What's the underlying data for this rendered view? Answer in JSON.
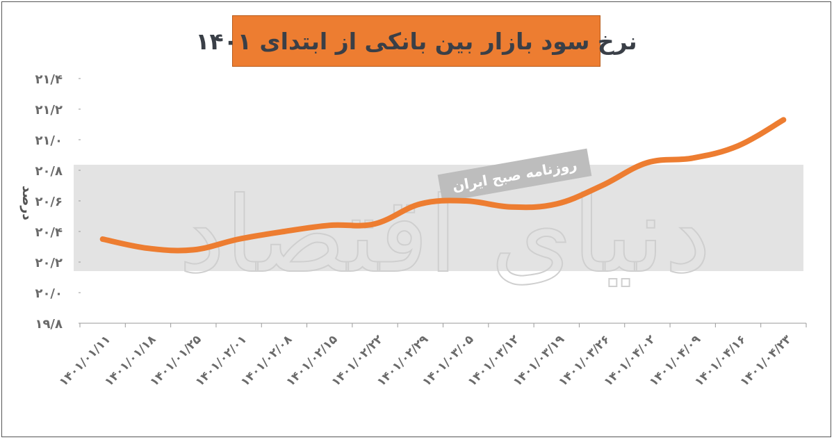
{
  "title": "نرخ سود بازار بین بانکی از ابتدای ۱۴۰۱",
  "watermark": {
    "logo_text": "دنیای اقتصاد",
    "stamp_text": "روزنامه صبح ایران"
  },
  "colors": {
    "line": "#ed7d31",
    "title_bg": "#ed7d31",
    "band": "#d9d9d9"
  },
  "chart_data": {
    "type": "line",
    "title": "نرخ سود بازار بین بانکی از ابتدای ۱۴۰۱",
    "xlabel": "",
    "ylabel": "درصد",
    "ylim": [
      19.8,
      21.4
    ],
    "yticks": [
      19.8,
      20.0,
      20.2,
      20.4,
      20.6,
      20.8,
      21.0,
      21.2,
      21.4
    ],
    "ytick_labels": [
      "۱۹/۸",
      "۲۰/۰",
      "۲۰/۲",
      "۲۰/۴",
      "۲۰/۶",
      "۲۰/۸",
      "۲۱/۰",
      "۲۱/۲",
      "۲۱/۴"
    ],
    "categories": [
      "۱۴۰۱/۰۱/۱۱",
      "۱۴۰۱/۰۱/۱۸",
      "۱۴۰۱/۰۱/۲۵",
      "۱۴۰۱/۰۲/۰۱",
      "۱۴۰۱/۰۲/۰۸",
      "۱۴۰۱/۰۲/۱۵",
      "۱۴۰۱/۰۲/۲۲",
      "۱۴۰۱/۰۲/۲۹",
      "۱۴۰۱/۰۳/۰۵",
      "۱۴۰۱/۰۳/۱۲",
      "۱۴۰۱/۰۳/۱۹",
      "۱۴۰۱/۰۳/۲۶",
      "۱۴۰۱/۰۴/۰۲",
      "۱۴۰۱/۰۴/۰۹",
      "۱۴۰۱/۰۴/۱۶",
      "۱۴۰۱/۰۴/۲۳"
    ],
    "series": [
      {
        "values": [
          20.35,
          20.29,
          20.28,
          20.35,
          20.4,
          20.44,
          20.45,
          20.58,
          20.6,
          20.56,
          20.58,
          20.7,
          20.85,
          20.88,
          20.96,
          21.13
        ]
      }
    ],
    "grid": false,
    "legend": "none"
  }
}
